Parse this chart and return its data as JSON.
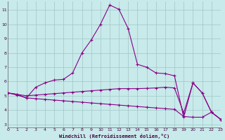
{
  "xlabel": "Windchill (Refroidissement éolien,°C)",
  "xlim": [
    0,
    23
  ],
  "ylim": [
    2.8,
    11.6
  ],
  "xticks": [
    0,
    1,
    2,
    3,
    4,
    5,
    6,
    7,
    8,
    9,
    10,
    11,
    12,
    13,
    14,
    15,
    16,
    17,
    18,
    19,
    20,
    21,
    22,
    23
  ],
  "yticks": [
    3,
    4,
    5,
    6,
    7,
    8,
    9,
    10,
    11
  ],
  "bg_color": "#c8eaea",
  "grid_color": "#a0c4c4",
  "line_color": "#880088",
  "curve1_x": [
    0,
    1,
    2,
    3,
    4,
    5,
    6,
    7,
    8,
    9,
    10,
    11,
    12,
    13,
    14,
    15,
    16,
    17,
    18,
    19,
    20,
    21,
    22,
    23
  ],
  "curve1_y": [
    5.2,
    5.1,
    4.85,
    5.6,
    5.9,
    6.1,
    6.15,
    6.6,
    8.0,
    8.9,
    10.0,
    11.35,
    11.05,
    9.7,
    7.2,
    7.0,
    6.6,
    6.55,
    6.4,
    3.5,
    5.9,
    5.2,
    3.85,
    3.35
  ],
  "curve2_x": [
    0,
    1,
    2,
    3,
    4,
    5,
    6,
    7,
    8,
    9,
    10,
    11,
    12,
    13,
    14,
    15,
    16,
    17,
    18,
    19,
    20,
    21,
    22,
    23
  ],
  "curve2_y": [
    5.2,
    5.1,
    5.0,
    5.05,
    5.1,
    5.15,
    5.2,
    5.25,
    5.3,
    5.35,
    5.4,
    5.45,
    5.5,
    5.5,
    5.5,
    5.52,
    5.55,
    5.6,
    5.55,
    3.8,
    5.9,
    5.2,
    3.85,
    3.35
  ],
  "curve3_x": [
    0,
    1,
    2,
    3,
    4,
    5,
    6,
    7,
    8,
    9,
    10,
    11,
    12,
    13,
    14,
    15,
    16,
    17,
    18,
    19,
    20,
    21,
    22,
    23
  ],
  "curve3_y": [
    5.2,
    5.05,
    4.85,
    4.8,
    4.75,
    4.7,
    4.65,
    4.6,
    4.55,
    4.5,
    4.45,
    4.4,
    4.35,
    4.3,
    4.25,
    4.2,
    4.15,
    4.1,
    4.05,
    3.55,
    3.5,
    3.5,
    3.85,
    3.35
  ]
}
